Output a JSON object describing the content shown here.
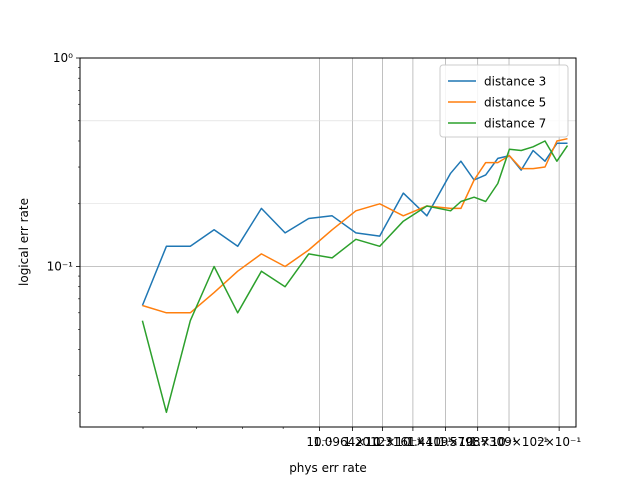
{
  "chart_data": {
    "type": "line",
    "xlabel": "phys err rate",
    "ylabel": "logical err rate",
    "xscale": "log",
    "yscale": "log",
    "xlim": [
      0.05,
      0.21
    ],
    "ylim": [
      0.017,
      1.0
    ],
    "grid": true,
    "legend_position": "top-right",
    "x_tick_labels": [
      {
        "value": 0.1,
        "label": "10⁻¹"
      },
      {
        "value": 0.11,
        "label": "1.0964×10⁻¹"
      },
      {
        "value": 0.12,
        "label": "1.2012×10⁻¹"
      },
      {
        "value": 0.131,
        "label": "1.3161×10⁻¹"
      },
      {
        "value": 0.144,
        "label": "1.4419×10⁻¹"
      },
      {
        "value": 0.158,
        "label": "1.5798×10⁻¹"
      },
      {
        "value": 0.173,
        "label": "1.7309×10⁻¹"
      },
      {
        "value": 0.2,
        "label": "2×10⁻¹"
      }
    ],
    "y_tick_labels": [
      {
        "value": 0.1,
        "label": "10⁻¹"
      },
      {
        "value": 1.0,
        "label": "10⁰"
      }
    ],
    "x": [
      0.0599,
      0.0642,
      0.0688,
      0.0737,
      0.0789,
      0.0845,
      0.0905,
      0.0969,
      0.1037,
      0.1111,
      0.119,
      0.1274,
      0.1364,
      0.1461,
      0.1505,
      0.1564,
      0.1617,
      0.1675,
      0.1732,
      0.1792,
      0.1855,
      0.192,
      0.1987,
      0.2049
    ],
    "series": [
      {
        "name": "distance 3",
        "color": "#1f77b4",
        "values": [
          0.065,
          0.125,
          0.125,
          0.15,
          0.125,
          0.19,
          0.145,
          0.17,
          0.175,
          0.145,
          0.14,
          0.225,
          0.175,
          0.28,
          0.32,
          0.26,
          0.275,
          0.33,
          0.34,
          0.29,
          0.36,
          0.32,
          0.39,
          0.39
        ]
      },
      {
        "name": "distance 5",
        "color": "#ff7f0e",
        "values": [
          0.065,
          0.06,
          0.06,
          0.075,
          0.095,
          0.115,
          0.1,
          0.12,
          0.15,
          0.185,
          0.2,
          0.175,
          0.195,
          0.19,
          0.19,
          0.26,
          0.315,
          0.315,
          0.34,
          0.295,
          0.295,
          0.3,
          0.4,
          0.41
        ]
      },
      {
        "name": "distance 7",
        "color": "#2ca02c",
        "values": [
          0.055,
          0.02,
          0.055,
          0.1,
          0.06,
          0.095,
          0.08,
          0.115,
          0.11,
          0.135,
          0.125,
          0.165,
          0.195,
          0.185,
          0.205,
          0.215,
          0.205,
          0.25,
          0.365,
          0.36,
          0.375,
          0.4,
          0.32,
          0.38
        ]
      }
    ]
  }
}
